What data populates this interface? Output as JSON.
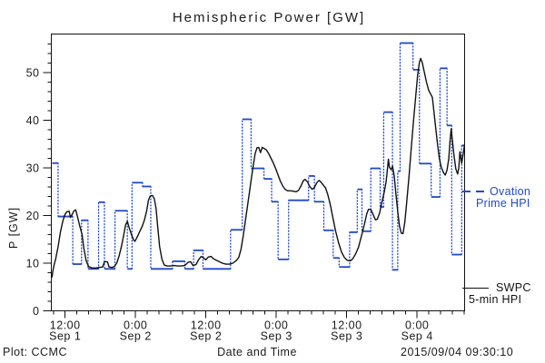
{
  "window": {
    "background": "#ffffff"
  },
  "title": "Hemispheric Power [GW]",
  "axes": {
    "x_label": "Date and Time",
    "y_label": "P [GW]"
  },
  "footer": {
    "credit": "Plot: CCMC",
    "timestamp": "2015/09/04 09:30:10"
  },
  "legend": {
    "ovation": {
      "line1": "Ovation",
      "line2": "Prime HPI",
      "color": "#2149c8"
    },
    "swpc": {
      "line1": "SWPC",
      "line2": "5-min HPI",
      "color": "#111111"
    }
  },
  "chart_data": {
    "type": "line",
    "title": "Hemispheric Power [GW]",
    "xlabel": "Date and Time",
    "ylabel": "P [GW]",
    "x_unit": "hours since Sep 1 00:00 (2015)",
    "x_range_hours": [
      9.75,
      80.2
    ],
    "ylim": [
      0,
      58
    ],
    "grid": false,
    "y_major_ticks": [
      0,
      10,
      20,
      30,
      40,
      50
    ],
    "y_minor_step": 2,
    "x_minor_step_hours": 2,
    "x_ticks": [
      {
        "t": 12,
        "time": "12:00",
        "date": "Sep 1"
      },
      {
        "t": 24,
        "time": "0:00",
        "date": "Sep 2"
      },
      {
        "t": 36,
        "time": "12:00",
        "date": "Sep 2"
      },
      {
        "t": 48,
        "time": "0:00",
        "date": "Sep 3"
      },
      {
        "t": 60,
        "time": "12:00",
        "date": "Sep 3"
      },
      {
        "t": 72,
        "time": "0:00",
        "date": "Sep 4"
      }
    ],
    "series": [
      {
        "name": "SWPC 5-min HPI",
        "style": "solid-line",
        "color": "#111111",
        "points_t_gw": [
          [
            9.75,
            7.0
          ],
          [
            9.9,
            8.2
          ],
          [
            10.1,
            9.5
          ],
          [
            10.4,
            11.0
          ],
          [
            10.8,
            13.5
          ],
          [
            11.2,
            16.5
          ],
          [
            11.6,
            18.8
          ],
          [
            12.0,
            20.3
          ],
          [
            12.3,
            20.8
          ],
          [
            12.7,
            20.9
          ],
          [
            12.9,
            19.6
          ],
          [
            13.2,
            20.2
          ],
          [
            13.5,
            21.0
          ],
          [
            13.8,
            21.2
          ],
          [
            14.1,
            19.8
          ],
          [
            14.5,
            17.8
          ],
          [
            14.9,
            16.0
          ],
          [
            15.2,
            13.0
          ],
          [
            15.6,
            10.5
          ],
          [
            16.0,
            9.3
          ],
          [
            16.6,
            9.0
          ],
          [
            17.2,
            9.0
          ],
          [
            17.8,
            9.1
          ],
          [
            18.4,
            9.2
          ],
          [
            18.7,
            10.3
          ],
          [
            19.2,
            10.3
          ],
          [
            19.5,
            9.2
          ],
          [
            20.0,
            9.1
          ],
          [
            20.4,
            9.3
          ],
          [
            20.8,
            10.0
          ],
          [
            21.2,
            11.5
          ],
          [
            21.6,
            13.5
          ],
          [
            22.0,
            16.0
          ],
          [
            22.3,
            18.0
          ],
          [
            22.6,
            18.8
          ],
          [
            22.9,
            17.5
          ],
          [
            23.3,
            16.0
          ],
          [
            23.7,
            14.8
          ],
          [
            23.9,
            14.6
          ],
          [
            24.3,
            15.5
          ],
          [
            24.7,
            16.6
          ],
          [
            25.1,
            17.6
          ],
          [
            25.5,
            19.0
          ],
          [
            25.9,
            21.0
          ],
          [
            26.2,
            23.2
          ],
          [
            26.5,
            24.1
          ],
          [
            26.9,
            24.2
          ],
          [
            27.2,
            23.5
          ],
          [
            27.5,
            21.5
          ],
          [
            27.8,
            17.5
          ],
          [
            28.1,
            13.5
          ],
          [
            28.5,
            10.8
          ],
          [
            28.9,
            9.6
          ],
          [
            29.4,
            9.4
          ],
          [
            30.0,
            9.4
          ],
          [
            30.6,
            9.5
          ],
          [
            31.2,
            9.4
          ],
          [
            31.8,
            9.4
          ],
          [
            32.4,
            9.5
          ],
          [
            33.0,
            10.2
          ],
          [
            33.4,
            10.3
          ],
          [
            33.8,
            9.5
          ],
          [
            34.3,
            9.7
          ],
          [
            34.8,
            10.8
          ],
          [
            35.2,
            11.4
          ],
          [
            35.6,
            11.1
          ],
          [
            36.0,
            10.7
          ],
          [
            36.4,
            11.3
          ],
          [
            36.9,
            11.4
          ],
          [
            37.3,
            10.9
          ],
          [
            37.8,
            10.6
          ],
          [
            38.3,
            10.3
          ],
          [
            38.8,
            10.0
          ],
          [
            39.4,
            9.8
          ],
          [
            40.0,
            9.8
          ],
          [
            40.6,
            10.0
          ],
          [
            41.2,
            10.6
          ],
          [
            41.6,
            11.2
          ],
          [
            42.0,
            13.0
          ],
          [
            42.4,
            16.0
          ],
          [
            42.8,
            19.5
          ],
          [
            43.2,
            23.0
          ],
          [
            43.6,
            26.5
          ],
          [
            44.0,
            30.0
          ],
          [
            44.4,
            33.0
          ],
          [
            44.7,
            34.2
          ],
          [
            45.0,
            34.3
          ],
          [
            45.3,
            33.2
          ],
          [
            45.6,
            34.3
          ],
          [
            46.0,
            34.0
          ],
          [
            46.3,
            33.8
          ],
          [
            46.7,
            33.0
          ],
          [
            47.1,
            32.0
          ],
          [
            47.5,
            31.0
          ],
          [
            47.9,
            29.8
          ],
          [
            48.3,
            28.5
          ],
          [
            48.7,
            27.2
          ],
          [
            49.1,
            26.2
          ],
          [
            49.5,
            25.5
          ],
          [
            49.9,
            25.2
          ],
          [
            50.4,
            25.2
          ],
          [
            50.9,
            25.1
          ],
          [
            51.4,
            25.0
          ],
          [
            51.8,
            25.3
          ],
          [
            52.2,
            26.2
          ],
          [
            52.6,
            27.3
          ],
          [
            52.9,
            27.6
          ],
          [
            53.3,
            27.1
          ],
          [
            53.7,
            26.1
          ],
          [
            54.1,
            25.5
          ],
          [
            54.5,
            25.9
          ],
          [
            54.9,
            26.9
          ],
          [
            55.3,
            27.4
          ],
          [
            55.7,
            26.9
          ],
          [
            56.0,
            26.4
          ],
          [
            56.4,
            25.8
          ],
          [
            56.8,
            24.3
          ],
          [
            57.2,
            22.3
          ],
          [
            57.6,
            19.8
          ],
          [
            58.1,
            16.8
          ],
          [
            58.6,
            14.3
          ],
          [
            59.1,
            12.4
          ],
          [
            59.6,
            11.2
          ],
          [
            60.1,
            10.6
          ],
          [
            60.6,
            10.5
          ],
          [
            61.0,
            10.9
          ],
          [
            61.5,
            11.9
          ],
          [
            62.0,
            13.3
          ],
          [
            62.5,
            15.6
          ],
          [
            63.0,
            18.1
          ],
          [
            63.4,
            20.3
          ],
          [
            63.7,
            21.3
          ],
          [
            64.1,
            21.3
          ],
          [
            64.5,
            20.2
          ],
          [
            64.9,
            19.1
          ],
          [
            65.2,
            19.2
          ],
          [
            65.6,
            20.5
          ],
          [
            66.0,
            22.8
          ],
          [
            66.4,
            24.9
          ],
          [
            66.7,
            27.0
          ],
          [
            66.9,
            29.3
          ],
          [
            67.1,
            31.8
          ],
          [
            67.3,
            30.1
          ],
          [
            67.6,
            29.6
          ],
          [
            67.8,
            30.4
          ],
          [
            68.1,
            28.3
          ],
          [
            68.4,
            24.5
          ],
          [
            68.7,
            20.8
          ],
          [
            69.0,
            17.8
          ],
          [
            69.3,
            16.3
          ],
          [
            69.6,
            16.2
          ],
          [
            69.9,
            18.5
          ],
          [
            70.2,
            22.5
          ],
          [
            70.6,
            28.0
          ],
          [
            71.0,
            34.0
          ],
          [
            71.4,
            40.0
          ],
          [
            71.8,
            45.5
          ],
          [
            72.1,
            49.5
          ],
          [
            72.4,
            52.2
          ],
          [
            72.6,
            53.0
          ],
          [
            72.9,
            52.0
          ],
          [
            73.2,
            50.3
          ],
          [
            73.6,
            48.0
          ],
          [
            74.0,
            46.2
          ],
          [
            74.3,
            45.5
          ],
          [
            74.6,
            44.8
          ],
          [
            74.9,
            41.5
          ],
          [
            75.2,
            38.0
          ],
          [
            75.5,
            34.8
          ],
          [
            75.8,
            32.0
          ],
          [
            76.1,
            30.2
          ],
          [
            76.5,
            29.0
          ],
          [
            76.8,
            28.5
          ],
          [
            77.1,
            29.5
          ],
          [
            77.4,
            32.0
          ],
          [
            77.6,
            35.5
          ],
          [
            77.8,
            38.2
          ],
          [
            78.0,
            36.0
          ],
          [
            78.3,
            32.5
          ],
          [
            78.6,
            29.8
          ],
          [
            78.9,
            28.7
          ],
          [
            79.1,
            30.0
          ],
          [
            79.3,
            33.4
          ],
          [
            79.6,
            31.0
          ],
          [
            79.9,
            33.2
          ],
          [
            80.1,
            35.0
          ]
        ]
      },
      {
        "name": "Ovation Prime HPI",
        "style": "step-solid-horizontal-dotted-vertical",
        "color": "#2149c8",
        "segments_t0_t1_gw": [
          [
            9.8,
            10.8,
            31.0
          ],
          [
            10.8,
            13.3,
            19.8
          ],
          [
            13.3,
            14.8,
            9.8
          ],
          [
            14.8,
            15.9,
            19.0
          ],
          [
            15.9,
            17.7,
            8.8
          ],
          [
            17.7,
            18.7,
            22.8
          ],
          [
            18.7,
            20.5,
            8.8
          ],
          [
            20.5,
            22.6,
            21.0
          ],
          [
            22.6,
            23.4,
            8.8
          ],
          [
            23.4,
            25.2,
            26.9
          ],
          [
            25.2,
            26.6,
            26.1
          ],
          [
            26.6,
            30.3,
            8.8
          ],
          [
            30.3,
            32.4,
            10.4
          ],
          [
            32.4,
            33.9,
            8.8
          ],
          [
            33.9,
            35.5,
            12.7
          ],
          [
            35.5,
            40.2,
            8.8
          ],
          [
            40.2,
            42.2,
            17.0
          ],
          [
            42.2,
            43.7,
            40.2
          ],
          [
            43.7,
            45.9,
            29.9
          ],
          [
            45.9,
            47.2,
            27.7
          ],
          [
            47.2,
            48.3,
            22.9
          ],
          [
            48.3,
            50.1,
            10.8
          ],
          [
            50.1,
            53.5,
            23.2
          ],
          [
            53.5,
            54.5,
            28.3
          ],
          [
            54.5,
            56.1,
            22.9
          ],
          [
            56.1,
            57.7,
            16.9
          ],
          [
            57.7,
            58.7,
            11.1
          ],
          [
            58.7,
            60.5,
            9.2
          ],
          [
            60.5,
            61.8,
            16.5
          ],
          [
            61.8,
            62.6,
            25.5
          ],
          [
            62.6,
            64.1,
            16.7
          ],
          [
            64.1,
            65.7,
            29.9
          ],
          [
            65.7,
            66.3,
            21.8
          ],
          [
            66.3,
            67.8,
            41.7
          ],
          [
            67.8,
            68.7,
            8.6
          ],
          [
            68.7,
            69.1,
            29.3
          ],
          [
            69.1,
            71.3,
            56.2
          ],
          [
            71.3,
            72.4,
            50.6
          ],
          [
            72.4,
            74.4,
            30.9
          ],
          [
            74.4,
            75.9,
            23.9
          ],
          [
            75.9,
            77.1,
            50.9
          ],
          [
            77.1,
            77.9,
            38.9
          ],
          [
            77.9,
            79.6,
            11.8
          ],
          [
            79.6,
            80.2,
            34.7
          ]
        ]
      }
    ]
  }
}
